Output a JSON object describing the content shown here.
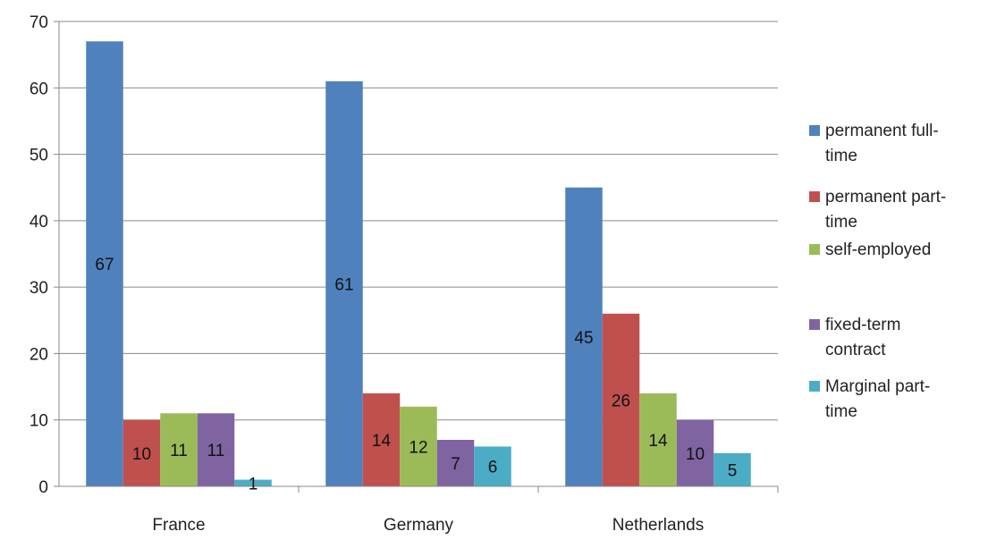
{
  "chart_data": {
    "type": "bar",
    "categories": [
      "France",
      "Germany",
      "Netherlands"
    ],
    "series": [
      {
        "name": "permanent full-time",
        "legend_lines": [
          "permanent full-",
          "time"
        ],
        "color": "#4F81BD",
        "values": [
          67,
          61,
          45
        ]
      },
      {
        "name": "permanent part-time",
        "legend_lines": [
          "permanent part-",
          "time"
        ],
        "color": "#C0504D",
        "values": [
          10,
          14,
          26
        ]
      },
      {
        "name": "self-employed",
        "legend_lines": [
          "self-employed"
        ],
        "color": "#9BBB59",
        "values": [
          11,
          12,
          14
        ]
      },
      {
        "name": "fixed-term contract",
        "legend_lines": [
          "fixed-term",
          "contract"
        ],
        "color": "#8064A2",
        "values": [
          11,
          7,
          10
        ]
      },
      {
        "name": "Marginal part-time",
        "legend_lines": [
          "Marginal part-",
          "time"
        ],
        "color": "#4BACC6",
        "values": [
          1,
          6,
          5
        ]
      }
    ],
    "ylim": [
      0,
      70
    ],
    "yticks": [
      0,
      10,
      20,
      30,
      40,
      50,
      60,
      70
    ],
    "grid": true,
    "legend_position": "right",
    "data_labels": true,
    "title": "",
    "xlabel": "",
    "ylabel": ""
  }
}
